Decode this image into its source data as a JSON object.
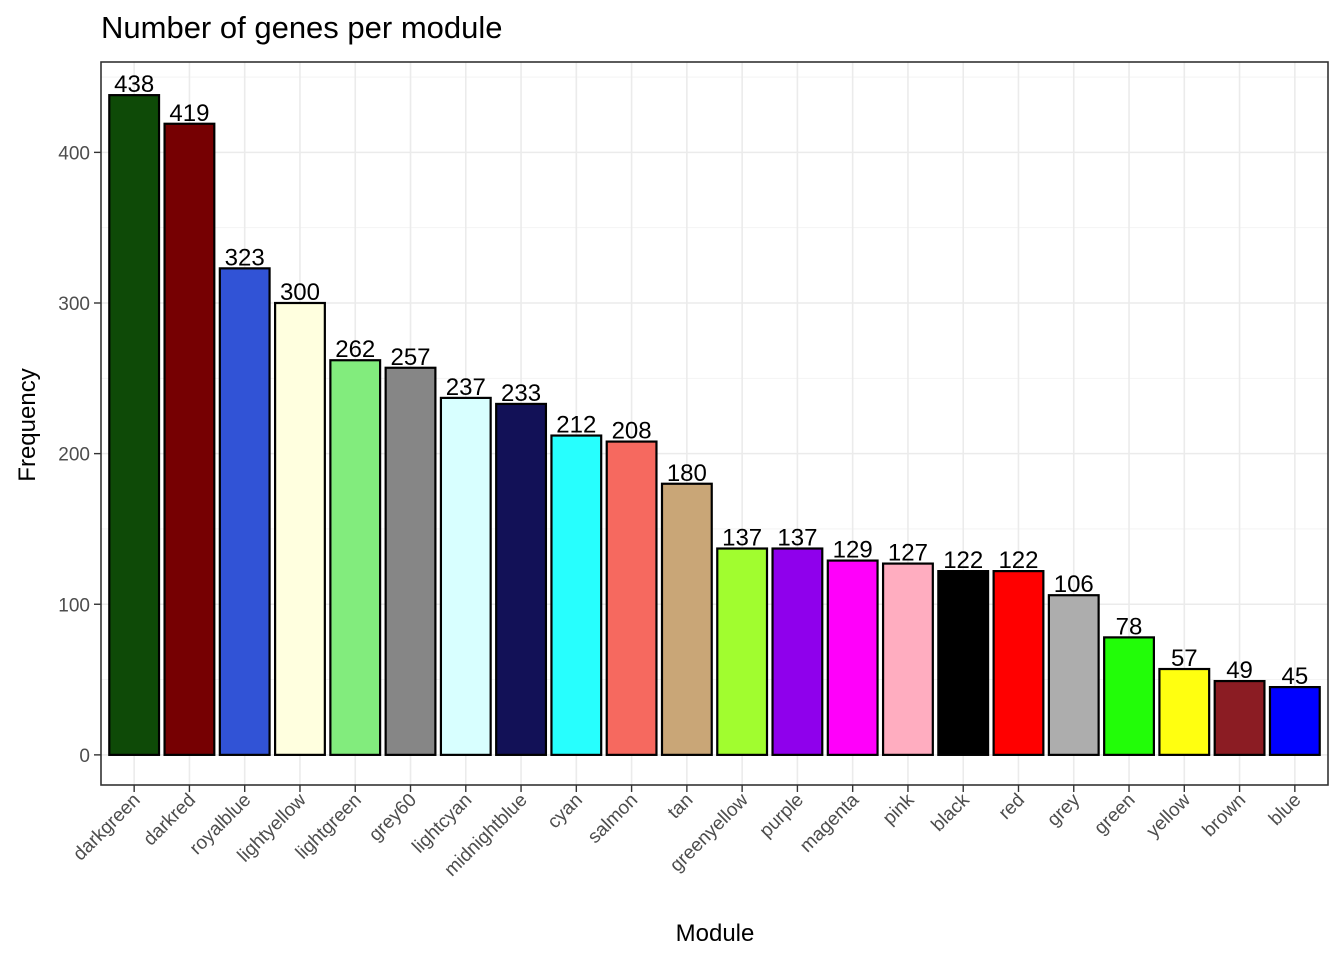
{
  "chart_data": {
    "type": "bar",
    "title": "Number of genes per module",
    "xlabel": "Module",
    "ylabel": "Frequency",
    "ylim": [
      -20,
      460
    ],
    "yticks": [
      0,
      100,
      200,
      300,
      400
    ],
    "grid": true,
    "legend": "none",
    "categories": [
      "darkgreen",
      "darkred",
      "royalblue",
      "lightyellow",
      "lightgreen",
      "grey60",
      "lightcyan",
      "midnightblue",
      "cyan",
      "salmon",
      "tan",
      "greenyellow",
      "purple",
      "magenta",
      "pink",
      "black",
      "red",
      "grey",
      "green",
      "yellow",
      "brown",
      "blue"
    ],
    "values": [
      438,
      419,
      323,
      300,
      262,
      257,
      237,
      233,
      212,
      208,
      180,
      137,
      137,
      129,
      127,
      122,
      122,
      106,
      78,
      57,
      49,
      45
    ],
    "colors": [
      "#0e4a07",
      "#760002",
      "#3153d6",
      "#ffffdf",
      "#82ec7d",
      "#868686",
      "#d8ffff",
      "#121157",
      "#27fffe",
      "#f6695f",
      "#c9a677",
      "#a1fd2f",
      "#8f00ec",
      "#ff00fa",
      "#ffadc0",
      "#000000",
      "#ff0000",
      "#adadad",
      "#22fd08",
      "#ffff10",
      "#8b1c23",
      "#0000ff"
    ]
  }
}
